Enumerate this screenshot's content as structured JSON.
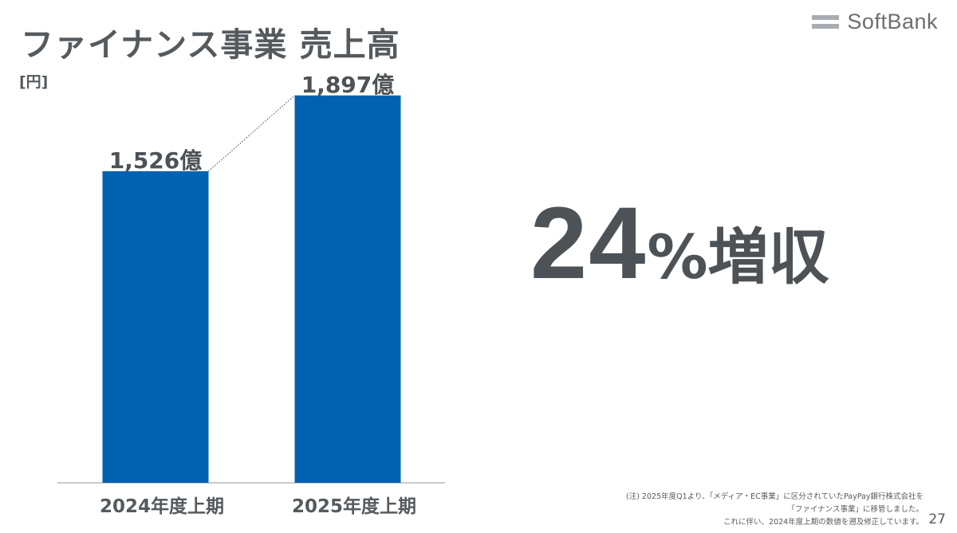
{
  "title": "ファイナンス事業 売上高",
  "unit": "[円]",
  "logo": {
    "text": "SoftBank"
  },
  "headline": {
    "number": "24",
    "percent": "%",
    "label": "増収"
  },
  "chart_data": {
    "type": "bar",
    "categories": [
      "2024年度上期",
      "2025年度上期"
    ],
    "values": [
      1526,
      1897
    ],
    "data_labels": [
      "1,526億",
      "1,897億"
    ],
    "ylabel": "[円]",
    "ylim": [
      0,
      1900
    ],
    "bar_color": "#0062b1",
    "grid": false,
    "connector": "dotted"
  },
  "footnote": {
    "line1": "(注) 2025年度Q1より、「メディア・EC事業」に区分されていたPayPay銀行株式会社を",
    "line2": "「ファイナンス事業」に移管しました。",
    "line3": "これに伴い、2024年度上期の数値を遡及修正しています。"
  },
  "page_number": "27",
  "colors": {
    "bar": "#0062b1",
    "text": "#555a5e",
    "logo_mark": "#a9acb0"
  }
}
